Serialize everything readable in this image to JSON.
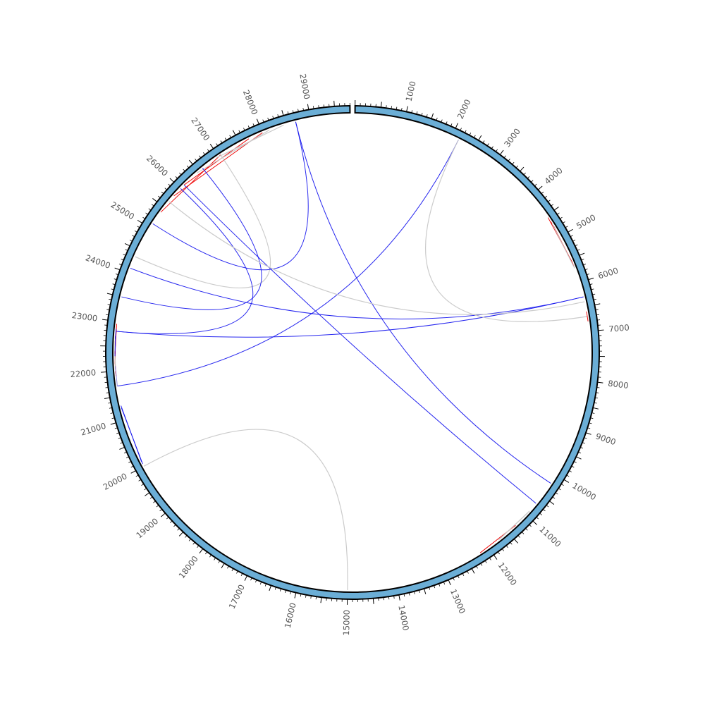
{
  "genome": {
    "length": 29800,
    "tick_minor_step": 100,
    "tick_major_step": 500,
    "label_step": 1000,
    "labels": [
      "1000",
      "2000",
      "3000",
      "4000",
      "5000",
      "6000",
      "7000",
      "8000",
      "9000",
      "10000",
      "11000",
      "12000",
      "13000",
      "14000",
      "15000",
      "16000",
      "17000",
      "18000",
      "19000",
      "20000",
      "21000",
      "22000",
      "23000",
      "24000",
      "25000",
      "26000",
      "27000",
      "28000",
      "29000"
    ]
  },
  "colors": {
    "ideogram_fill": "#6baed6",
    "ideogram_stroke": "#000000",
    "red": "#ee0000",
    "blue": "#1a1aee",
    "gray": "#c8c8c8",
    "lightblue": "#8888dd"
  },
  "links": [
    {
      "from": 28000,
      "to": 25800,
      "color": "red",
      "type": "chord"
    },
    {
      "from": 27700,
      "to": 26100,
      "color": "red",
      "type": "chord"
    },
    {
      "from": 27050,
      "to": 25380,
      "color": "red",
      "type": "chord"
    },
    {
      "from": 28450,
      "to": 26950,
      "color": "gray",
      "type": "chord"
    },
    {
      "from": 28150,
      "to": 26450,
      "color": "gray",
      "type": "chord"
    },
    {
      "from": 27050,
      "to": 24350,
      "color": "gray",
      "type": "curve"
    },
    {
      "from": 28700,
      "to": 25100,
      "color": "blue",
      "type": "curve"
    },
    {
      "from": 26600,
      "to": 23500,
      "color": "blue",
      "type": "curve"
    },
    {
      "from": 26000,
      "to": 22800,
      "color": "blue",
      "type": "curve"
    },
    {
      "from": 28700,
      "to": 10200,
      "color": "blue",
      "type": "curve"
    },
    {
      "from": 26100,
      "to": 10700,
      "color": "blue",
      "type": "curve"
    },
    {
      "from": 24100,
      "to": 6300,
      "color": "blue",
      "type": "curve"
    },
    {
      "from": 22800,
      "to": 6300,
      "color": "blue",
      "type": "curve"
    },
    {
      "from": 21700,
      "to": 2150,
      "color": "blue",
      "type": "curve"
    },
    {
      "from": 25650,
      "to": 6400,
      "color": "gray",
      "type": "curve"
    },
    {
      "from": 2150,
      "to": 6700,
      "color": "gray",
      "type": "curve"
    },
    {
      "from": 22950,
      "to": 22350,
      "color": "red",
      "type": "chord"
    },
    {
      "from": 22900,
      "to": 22300,
      "color": "red",
      "type": "chord"
    },
    {
      "from": 22650,
      "to": 22150,
      "color": "red",
      "type": "chord"
    },
    {
      "from": 22150,
      "to": 22600,
      "color": "red",
      "type": "chord"
    },
    {
      "from": 21900,
      "to": 22100,
      "color": "red",
      "type": "chord"
    },
    {
      "from": 21950,
      "to": 22150,
      "color": "red",
      "type": "chord"
    },
    {
      "from": 22550,
      "to": 22400,
      "color": "gray",
      "type": "chord"
    },
    {
      "from": 22450,
      "to": 22700,
      "color": "gray",
      "type": "chord"
    },
    {
      "from": 22000,
      "to": 22350,
      "color": "gray",
      "type": "chord"
    },
    {
      "from": 21700,
      "to": 22100,
      "color": "lightblue",
      "type": "chord"
    },
    {
      "from": 22850,
      "to": 22650,
      "color": "blue",
      "type": "chord"
    },
    {
      "from": 22700,
      "to": 22300,
      "color": "blue",
      "type": "chord"
    },
    {
      "from": 4550,
      "to": 5580,
      "color": "red",
      "type": "chord"
    },
    {
      "from": 4650,
      "to": 5620,
      "color": "red",
      "type": "chord"
    },
    {
      "from": 4750,
      "to": 5660,
      "color": "red",
      "type": "chord"
    },
    {
      "from": 4700,
      "to": 5700,
      "color": "gray",
      "type": "chord"
    },
    {
      "from": 6800,
      "to": 6600,
      "color": "red",
      "type": "chord"
    },
    {
      "from": 11300,
      "to": 12200,
      "color": "red",
      "type": "chord"
    },
    {
      "from": 10900,
      "to": 11700,
      "color": "gray",
      "type": "chord"
    },
    {
      "from": 10950,
      "to": 11750,
      "color": "gray",
      "type": "chord"
    },
    {
      "from": 20100,
      "to": 21300,
      "color": "blue",
      "type": "chord"
    },
    {
      "from": 20050,
      "to": 21250,
      "color": "blue",
      "type": "chord"
    },
    {
      "from": 20000,
      "to": 15000,
      "color": "gray",
      "type": "curve"
    }
  ]
}
